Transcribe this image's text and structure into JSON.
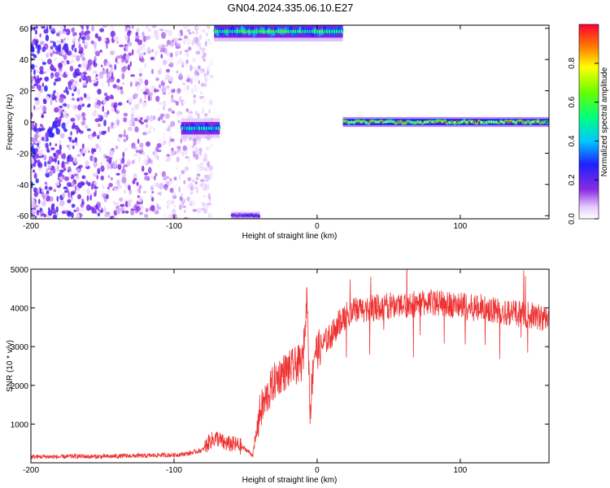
{
  "title": "GN04.2024.335.06.10.E27",
  "chart_data": [
    {
      "type": "heatmap",
      "xlabel": "Height of straight line (km)",
      "ylabel": "Frequency (Hz)",
      "xlim": [
        -200,
        162
      ],
      "ylim": [
        -62,
        62
      ],
      "x_ticks": [
        -200,
        -100,
        0,
        100
      ],
      "y_ticks": [
        -60,
        -40,
        -20,
        0,
        20,
        40,
        60
      ],
      "colorbar": {
        "label": "Normalized spectral amplitude",
        "range": [
          0,
          1
        ],
        "ticks": [
          "0.0",
          "0.2",
          "0.4",
          "0.6",
          "0.8"
        ],
        "tick_values": [
          0.0,
          0.2,
          0.4,
          0.6,
          0.8
        ],
        "colormap": "rainbow (white-purple-blue-cyan-green-yellow-red)"
      },
      "features": [
        {
          "x": [
            -200,
            -90
          ],
          "freq_range": [
            -62,
            62
          ],
          "amplitude": 0.05,
          "kind": "scattered noise"
        },
        {
          "x": [
            -95,
            -68
          ],
          "freq_range": [
            -8,
            0
          ],
          "amplitude": 0.5,
          "kind": "tone near -3 Hz"
        },
        {
          "x": [
            -72,
            18
          ],
          "freq_range": [
            54,
            62
          ],
          "amplitude": 0.6,
          "kind": "tone near 58 Hz"
        },
        {
          "x": [
            -60,
            -40
          ],
          "freq_range": [
            -62,
            -58
          ],
          "amplitude": 0.3,
          "kind": "tone near -60 Hz"
        },
        {
          "x": [
            18,
            162
          ],
          "freq_range": [
            -2,
            2
          ],
          "amplitude": 0.95,
          "kind": "tone near 0 Hz"
        }
      ]
    },
    {
      "type": "line",
      "xlabel": "Height of straight line (km)",
      "ylabel": "SNR (10 * v/v)",
      "xlim": [
        -200,
        162
      ],
      "ylim": [
        0,
        5000
      ],
      "x_ticks": [
        -200,
        -100,
        0,
        100
      ],
      "y_ticks": [
        1000,
        2000,
        3000,
        4000,
        5000
      ],
      "color": "#ee3333",
      "x": [
        -200,
        -190,
        -180,
        -170,
        -160,
        -150,
        -140,
        -130,
        -120,
        -110,
        -100,
        -90,
        -80,
        -75,
        -70,
        -65,
        -60,
        -55,
        -50,
        -45,
        -40,
        -35,
        -30,
        -25,
        -20,
        -15,
        -10,
        -7,
        -5,
        -2,
        0,
        5,
        10,
        15,
        20,
        25,
        30,
        40,
        50,
        60,
        70,
        80,
        90,
        100,
        110,
        120,
        130,
        140,
        150,
        162
      ],
      "values": [
        150,
        160,
        150,
        170,
        160,
        160,
        170,
        180,
        180,
        200,
        200,
        240,
        330,
        560,
        640,
        500,
        480,
        450,
        350,
        200,
        1300,
        1700,
        2100,
        2300,
        2400,
        2500,
        2600,
        4400,
        1300,
        2900,
        2900,
        3100,
        3300,
        3600,
        3800,
        3900,
        3950,
        4000,
        4050,
        4100,
        4100,
        4150,
        4100,
        4050,
        4000,
        3950,
        3900,
        3850,
        3800,
        3700
      ]
    }
  ]
}
